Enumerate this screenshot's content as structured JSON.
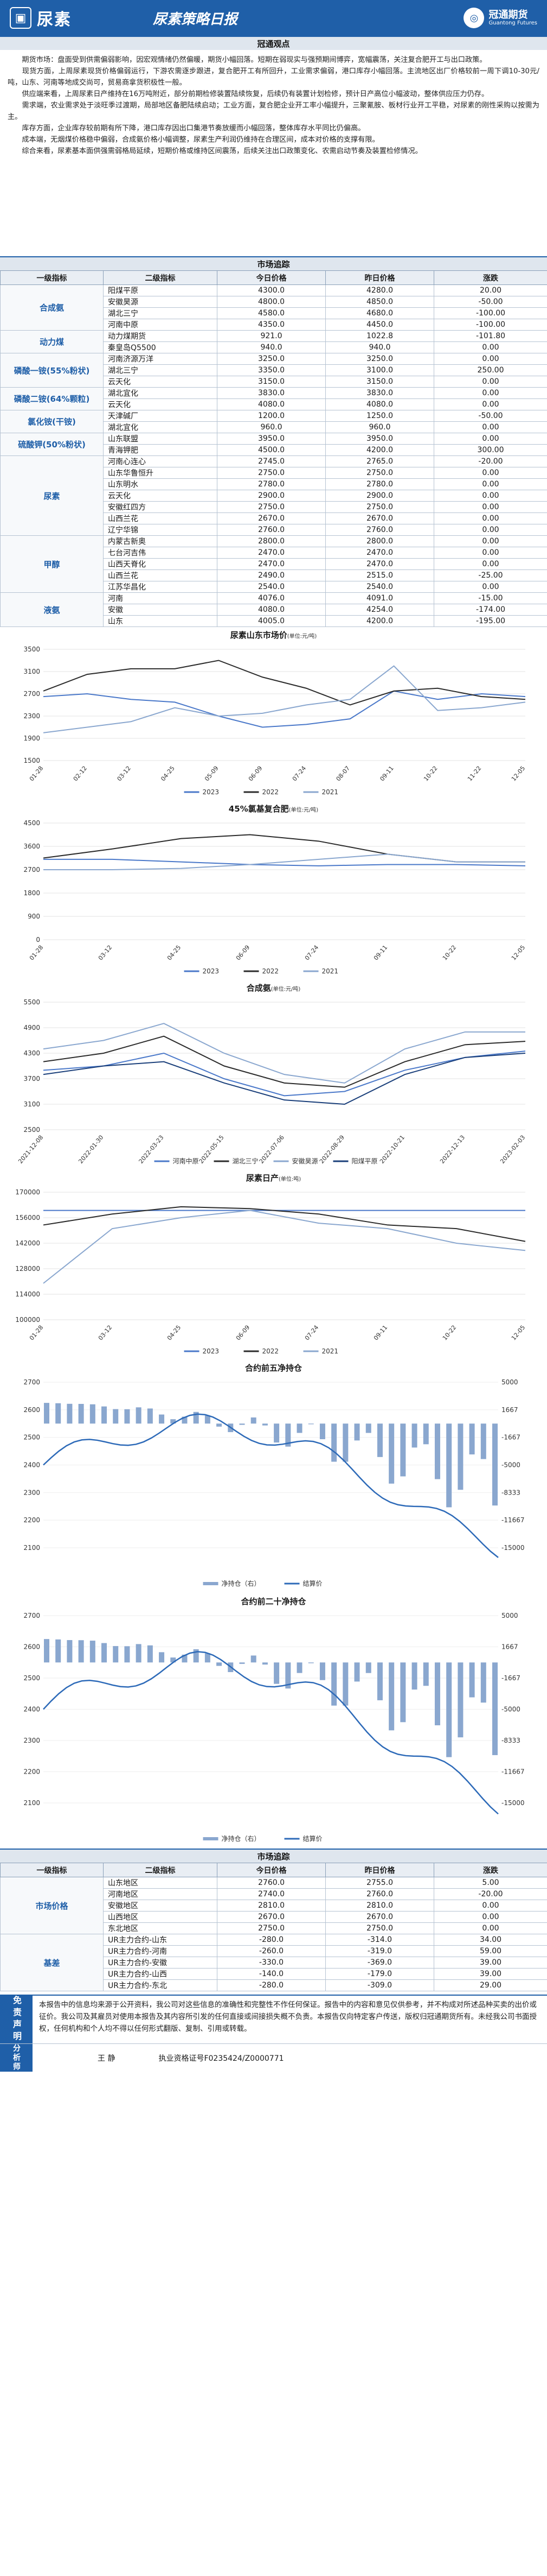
{
  "header": {
    "logo_text": "尿素",
    "title": "尿素策略日报",
    "company_cn": "冠通期货",
    "company_en": "Guantong Futures"
  },
  "views": {
    "heading": "冠通观点",
    "paragraphs": [
      "期货市场：盘面受到供需偏弱影响，因宏观情绪仍然偏暖，期货小幅回落。短期在弱现实与强预期间博弈，宽幅震荡，关注复合肥开工与出口政策。",
      "现货方面，上周尿素现货价格偏弱运行，下游农需逐步跟进，复合肥开工有所回升，工业需求偏弱，港口库存小幅回落。主流地区出厂价格较前一周下调10-30元/吨，山东、河南等地成交尚可，贸易商拿货积极性一般。",
      "供应端来看，上周尿素日产维持在16万吨附近，部分前期检修装置陆续恢复，后续仍有装置计划检修，预计日产高位小幅波动，整体供应压力仍存。",
      "需求端，农业需求处于淡旺季过渡期，局部地区备肥陆续启动；工业方面，复合肥企业开工率小幅提升，三聚氰胺、板材行业开工平稳，对尿素的刚性采购以按需为主。",
      "库存方面，企业库存较前期有所下降，港口库存因出口集港节奏放缓而小幅回落，整体库存水平同比仍偏高。",
      "成本端，无烟煤价格稳中偏弱，合成氨价格小幅调整，尿素生产利润仍维持在合理区间，成本对价格的支撑有限。",
      "综合来看，尿素基本面供强需弱格局延续，短期价格或维持区间震荡，后续关注出口政策变化、农需启动节奏及装置检修情况。"
    ]
  },
  "market": {
    "heading": "市场追踪",
    "columns": [
      "一级指标",
      "二级指标",
      "今日价格",
      "昨日价格",
      "涨跌"
    ],
    "groups": [
      {
        "category": "合成氨",
        "rows": [
          [
            "阳煤平原",
            "4300.0",
            "4280.0",
            "20.00"
          ],
          [
            "安徽昊源",
            "4800.0",
            "4850.0",
            "-50.00"
          ],
          [
            "湖北三宁",
            "4580.0",
            "4680.0",
            "-100.00"
          ],
          [
            "河南中原",
            "4350.0",
            "4450.0",
            "-100.00"
          ]
        ]
      },
      {
        "category": "动力煤",
        "rows": [
          [
            "动力煤期货",
            "921.0",
            "1022.8",
            "-101.80"
          ],
          [
            "秦皇岛Q5500",
            "940.0",
            "940.0",
            "0.00"
          ]
        ]
      },
      {
        "category": "磷酸一铵(55%粉状)",
        "rows": [
          [
            "河南济源万洋",
            "3250.0",
            "3250.0",
            "0.00"
          ],
          [
            "湖北三宁",
            "3350.0",
            "3100.0",
            "250.00"
          ],
          [
            "云天化",
            "3150.0",
            "3150.0",
            "0.00"
          ]
        ]
      },
      {
        "category": "磷酸二铵(64%颗粒)",
        "rows": [
          [
            "湖北宜化",
            "3830.0",
            "3830.0",
            "0.00"
          ],
          [
            "云天化",
            "4080.0",
            "4080.0",
            "0.00"
          ]
        ]
      },
      {
        "category": "氯化铵(干铵)",
        "rows": [
          [
            "天津碱厂",
            "1200.0",
            "1250.0",
            "-50.00"
          ],
          [
            "湖北宜化",
            "960.0",
            "960.0",
            "0.00"
          ]
        ]
      },
      {
        "category": "硫酸钾(50%粉状)",
        "rows": [
          [
            "山东联盟",
            "3950.0",
            "3950.0",
            "0.00"
          ],
          [
            "青海钾肥",
            "4500.0",
            "4200.0",
            "300.00"
          ]
        ]
      },
      {
        "category": "尿素",
        "rows": [
          [
            "河南心连心",
            "2745.0",
            "2765.0",
            "-20.00"
          ],
          [
            "山东华鲁恒升",
            "2750.0",
            "2750.0",
            "0.00"
          ],
          [
            "山东明水",
            "2780.0",
            "2780.0",
            "0.00"
          ],
          [
            "云天化",
            "2900.0",
            "2900.0",
            "0.00"
          ],
          [
            "安徽红四方",
            "2750.0",
            "2750.0",
            "0.00"
          ],
          [
            "山西兰花",
            "2670.0",
            "2670.0",
            "0.00"
          ],
          [
            "辽宁华锦",
            "2760.0",
            "2760.0",
            "0.00"
          ]
        ]
      },
      {
        "category": "甲醇",
        "rows": [
          [
            "内蒙古新奥",
            "2800.0",
            "2800.0",
            "0.00"
          ],
          [
            "七台河吉伟",
            "2470.0",
            "2470.0",
            "0.00"
          ],
          [
            "山西天脊化",
            "2470.0",
            "2470.0",
            "0.00"
          ],
          [
            "山西兰花",
            "2490.0",
            "2515.0",
            "-25.00"
          ],
          [
            "江苏华昌化",
            "2540.0",
            "2540.0",
            "0.00"
          ]
        ]
      },
      {
        "category": "液氨",
        "rows": [
          [
            "河南",
            "4076.0",
            "4091.0",
            "-15.00"
          ],
          [
            "安徽",
            "4080.0",
            "4254.0",
            "-174.00"
          ],
          [
            "山东",
            "4005.0",
            "4200.0",
            "-195.00"
          ]
        ]
      }
    ]
  },
  "charts": {
    "c1": {
      "title": "尿素山东市场价",
      "unit": "(单位:元/吨)",
      "legend": [
        "2023",
        "2022",
        "2021"
      ]
    },
    "c2": {
      "title": "45%氯基复合肥",
      "unit": "(单位:元/吨)",
      "legend": [
        "2023",
        "2022",
        "2021"
      ]
    },
    "c3": {
      "title": "合成氨",
      "unit": "(单位:元/吨)",
      "legend": [
        "河南中原",
        "湖北三宁",
        "安徽昊源",
        "阳煤平原"
      ]
    },
    "c4": {
      "title": "尿素日产",
      "unit": "(单位:吨)",
      "legend": [
        "2023",
        "2022",
        "2021"
      ]
    },
    "c5": {
      "title": "合约前五净持仓",
      "legend": [
        "净持仓（右）",
        "结算价"
      ]
    },
    "c6": {
      "title": "合约前二十净持仓",
      "legend": [
        "净持仓（右）",
        "结算价"
      ]
    }
  },
  "chart_data": [
    {
      "type": "line",
      "title": "尿素山东市场价",
      "ylim": [
        1500,
        3500
      ],
      "x": [
        "01-28",
        "02-12",
        "03-12",
        "04-25",
        "05-09",
        "06-09",
        "07-24",
        "08-07",
        "09-11",
        "10-22",
        "11-22",
        "12-05"
      ],
      "series": [
        {
          "name": "2023",
          "values": [
            2650,
            2700,
            2600,
            2550,
            2300,
            2100,
            2150,
            2250,
            2750,
            2600,
            2700,
            2650
          ]
        },
        {
          "name": "2022",
          "values": [
            2750,
            3050,
            3150,
            3150,
            3300,
            3000,
            2800,
            2500,
            2750,
            2800,
            2650,
            2600
          ]
        },
        {
          "name": "2021",
          "values": [
            2000,
            2100,
            2200,
            2450,
            2300,
            2350,
            2500,
            2600,
            3200,
            2400,
            2450,
            2550
          ]
        }
      ]
    },
    {
      "type": "line",
      "title": "45%氯基复合肥",
      "ylim": [
        0,
        4500
      ],
      "x": [
        "01-28",
        "03-12",
        "04-25",
        "06-09",
        "07-24",
        "09-11",
        "10-22",
        "12-05"
      ],
      "series": [
        {
          "name": "2023",
          "values": [
            3100,
            3100,
            3000,
            2900,
            2850,
            2900,
            2900,
            2850
          ]
        },
        {
          "name": "2022",
          "values": [
            3150,
            3500,
            3900,
            4050,
            3800,
            3300,
            3000,
            3000
          ]
        },
        {
          "name": "2021",
          "values": [
            2700,
            2700,
            2750,
            2900,
            3100,
            3300,
            3000,
            3000
          ]
        }
      ]
    },
    {
      "type": "line",
      "title": "合成氨",
      "ylim": [
        2500,
        5500
      ],
      "x": [
        "2021-12-08",
        "2022-01-30",
        "2022-03-23",
        "2022-05-15",
        "2022-07-06",
        "2022-08-29",
        "2022-10-21",
        "2022-12-13",
        "2023-02-03"
      ],
      "series": [
        {
          "name": "河南中原",
          "values": [
            3900,
            4000,
            4300,
            3700,
            3300,
            3400,
            3900,
            4200,
            4350
          ]
        },
        {
          "name": "湖北三宁",
          "values": [
            4100,
            4300,
            4700,
            4000,
            3600,
            3500,
            4100,
            4500,
            4580
          ]
        },
        {
          "name": "安徽昊源",
          "values": [
            4400,
            4600,
            5000,
            4300,
            3800,
            3600,
            4400,
            4800,
            4800
          ]
        },
        {
          "name": "阳煤平原",
          "values": [
            3800,
            4000,
            4100,
            3600,
            3200,
            3100,
            3800,
            4200,
            4300
          ]
        }
      ]
    },
    {
      "type": "line",
      "title": "尿素日产",
      "ylim": [
        100000,
        170000
      ],
      "x": [
        "01-28",
        "03-12",
        "04-25",
        "06-09",
        "07-24",
        "09-11",
        "10-22",
        "12-05"
      ],
      "series": [
        {
          "name": "2023",
          "values": [
            160000,
            160000,
            160000,
            160000,
            160000,
            160000,
            160000,
            160000
          ]
        },
        {
          "name": "2022",
          "values": [
            152000,
            158000,
            162000,
            161000,
            158000,
            152000,
            150000,
            143000
          ]
        },
        {
          "name": "2021",
          "values": [
            120000,
            150000,
            156000,
            160000,
            153000,
            150000,
            142000,
            138000
          ]
        }
      ]
    },
    {
      "type": "bar+line",
      "title": "合约前五净持仓",
      "ylim_left": [
        2100,
        2700
      ],
      "ylim_right": [
        -15000,
        5000
      ],
      "series": [
        {
          "name": "净持仓（右）"
        },
        {
          "name": "结算价"
        }
      ]
    },
    {
      "type": "bar+line",
      "title": "合约前二十净持仓",
      "ylim_left": [
        2100,
        2700
      ],
      "ylim_right": [
        -15000,
        5000
      ],
      "series": [
        {
          "name": "净持仓（右）"
        },
        {
          "name": "结算价"
        }
      ]
    }
  ],
  "tracking": {
    "heading": "市场追踪",
    "columns": [
      "一级指标",
      "二级指标",
      "今日价格",
      "昨日价格",
      "涨跌"
    ],
    "groups": [
      {
        "category": "市场价格",
        "rows": [
          [
            "山东地区",
            "2760.0",
            "2755.0",
            "5.00"
          ],
          [
            "河南地区",
            "2740.0",
            "2760.0",
            "-20.00"
          ],
          [
            "安徽地区",
            "2810.0",
            "2810.0",
            "0.00"
          ],
          [
            "山西地区",
            "2670.0",
            "2670.0",
            "0.00"
          ],
          [
            "东北地区",
            "2750.0",
            "2750.0",
            "0.00"
          ]
        ]
      },
      {
        "category": "基差",
        "rows": [
          [
            "UR主力合约-山东",
            "-280.0",
            "-314.0",
            "34.00"
          ],
          [
            "UR主力合约-河南",
            "-260.0",
            "-319.0",
            "59.00"
          ],
          [
            "UR主力合约-安徽",
            "-330.0",
            "-369.0",
            "39.00"
          ],
          [
            "UR主力合约-山西",
            "-140.0",
            "-179.0",
            "39.00"
          ],
          [
            "UR主力合约-东北",
            "-280.0",
            "-309.0",
            "29.00"
          ]
        ]
      }
    ]
  },
  "disclaimer": {
    "label": "免责声明",
    "text": "本报告中的信息均来源于公开资料，我公司对这些信息的准确性和完整性不作任何保证。报告中的内容和意见仅供参考，并不构成对所述品种买卖的出价或征价。我公司及其雇员对使用本报告及其内容所引发的任何直接或间接损失概不负责。本报告仅向特定客户传送，版权归冠通期货所有。未经我公司书面授权，任何机构和个人均不得以任何形式翻版、复制、引用或转载。"
  },
  "analyst": {
    "label": "分析师",
    "name": "王 静",
    "license": "执业资格证号F0235424/Z0000771"
  }
}
